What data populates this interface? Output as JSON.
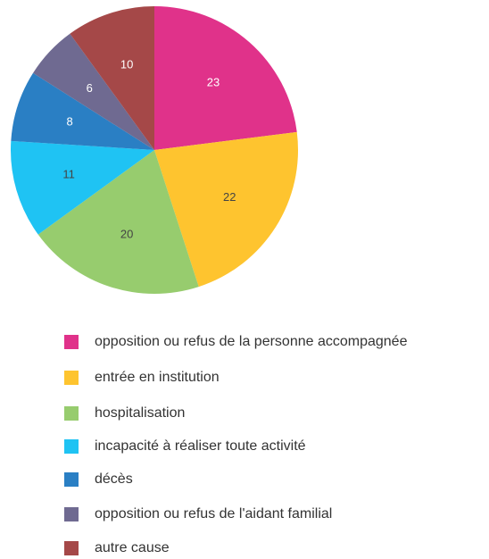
{
  "chart_data": {
    "type": "pie",
    "categories": [
      "opposition ou refus de la personne accompagnée",
      "entrée en institution",
      "hospitalisation",
      "incapacité à réaliser toute activité",
      "décès",
      "opposition ou refus de l'aidant familial",
      "autre cause"
    ],
    "values": [
      23,
      22,
      20,
      11,
      8,
      6,
      10
    ],
    "colors": [
      "#e0328a",
      "#fec42f",
      "#97cc6e",
      "#1fc3f3",
      "#2a7fc4",
      "#6f6a91",
      "#a54848"
    ],
    "legend": "bottom"
  }
}
